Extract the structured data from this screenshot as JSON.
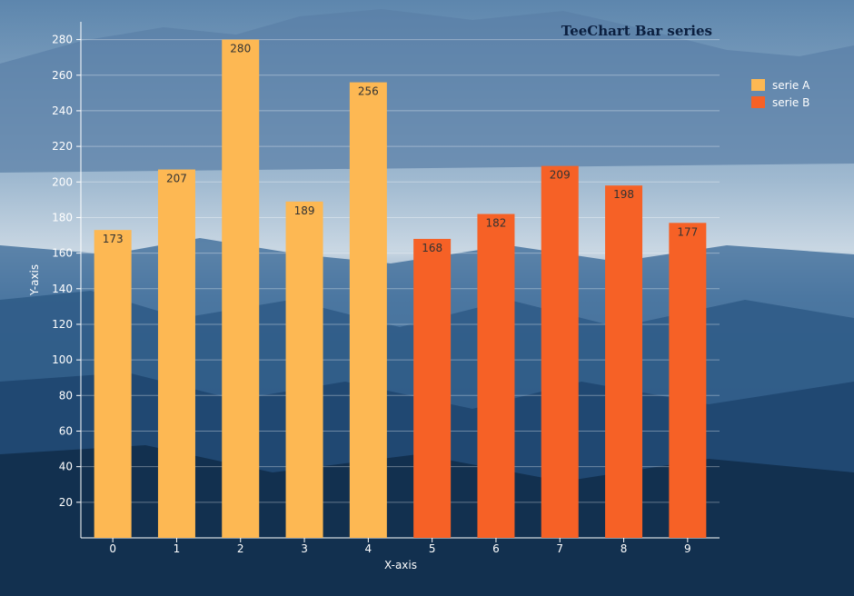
{
  "chart_data": {
    "type": "bar",
    "title": "TeeChart Bar series",
    "xlabel": "X-axis",
    "ylabel": "Y-axis",
    "ylim": [
      0,
      290
    ],
    "yticks": [
      20,
      40,
      60,
      80,
      100,
      120,
      140,
      160,
      180,
      200,
      220,
      240,
      260,
      280
    ],
    "grid": true,
    "legend_position": "top-right",
    "series": [
      {
        "name": "serie A",
        "color": "#fdb853",
        "points": [
          {
            "x": "0",
            "value": 173
          },
          {
            "x": "1",
            "value": 207
          },
          {
            "x": "2",
            "value": 280
          },
          {
            "x": "3",
            "value": 189
          },
          {
            "x": "4",
            "value": 256
          }
        ]
      },
      {
        "name": "serie B",
        "color": "#f66126",
        "points": [
          {
            "x": "5",
            "value": 168
          },
          {
            "x": "6",
            "value": 182
          },
          {
            "x": "7",
            "value": 209
          },
          {
            "x": "8",
            "value": 198
          },
          {
            "x": "9",
            "value": 177
          }
        ]
      }
    ],
    "categories": [
      "0",
      "1",
      "2",
      "3",
      "4",
      "5",
      "6",
      "7",
      "8",
      "9"
    ]
  }
}
